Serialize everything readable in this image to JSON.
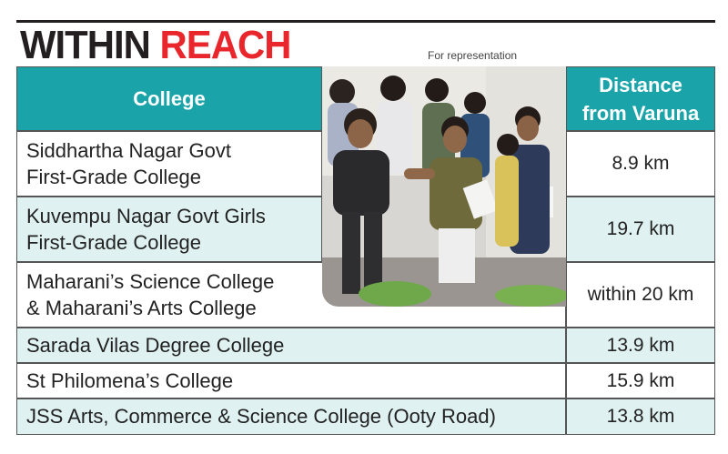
{
  "headline": {
    "word1": "WITHIN",
    "word2": "REACH"
  },
  "caption_note": "For representation",
  "table": {
    "headers": {
      "college": "College",
      "distance_line1": "Distance",
      "distance_line2": "from Varuna"
    },
    "rows": [
      {
        "college_line1": "Siddhartha Nagar Govt",
        "college_line2": "First-Grade College",
        "distance": "8.9 km"
      },
      {
        "college_line1": "Kuvempu Nagar Govt Girls",
        "college_line2": "First-Grade College",
        "distance": "19.7 km"
      },
      {
        "college_line1": "Maharani’s Science College",
        "college_line2": "& Maharani’s Arts College",
        "distance": "within 20 km"
      },
      {
        "college_line1": "Sarada Vilas Degree College",
        "distance": "13.9 km"
      },
      {
        "college_line1": "St Philomena’s College",
        "distance": "15.9 km"
      },
      {
        "college_line1": "JSS Arts, Commerce & Science College (Ooty Road)",
        "distance": "13.8 km"
      }
    ]
  },
  "colors": {
    "header_bg": "#1aa3a8",
    "alt_row_bg": "#dff1f1",
    "accent_red": "#e8262c",
    "ink": "#231f20"
  }
}
